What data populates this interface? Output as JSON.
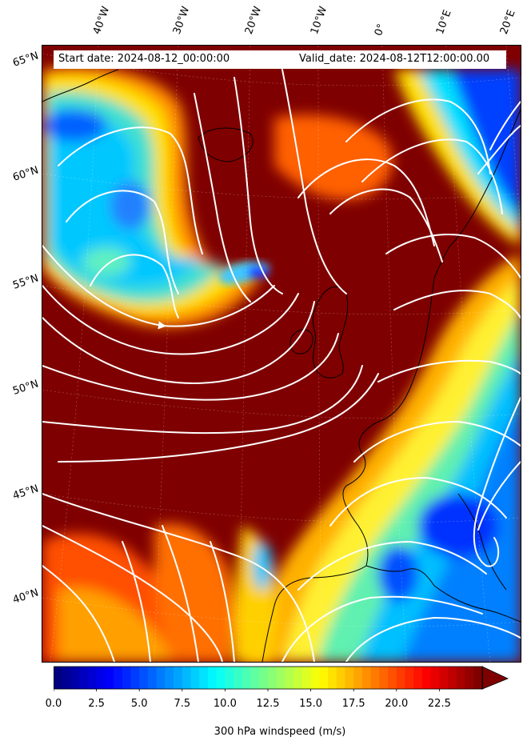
{
  "header": {
    "start_date": "Start date: 2024-08-12_00:00:00",
    "valid_date": "Valid_date: 2024-08-12T12:00:00.00"
  },
  "axes": {
    "longitude_labels": [
      "40°W",
      "30°W",
      "20°W",
      "10°W",
      "0°",
      "10°E",
      "20°E"
    ],
    "latitude_labels": [
      "65°N",
      "60°N",
      "55°N",
      "50°N",
      "45°N",
      "40°N"
    ]
  },
  "colorbar": {
    "label": "300 hPa windspeed (m/s)",
    "ticks": [
      "0.0",
      "2.5",
      "5.0",
      "7.5",
      "10.0",
      "12.5",
      "15.0",
      "17.5",
      "20.0",
      "22.5"
    ],
    "min": 0,
    "max": 25,
    "extend": "max",
    "colormap": "jet",
    "over_color": "#7f0000"
  },
  "map": {
    "variable": "300 hPa windspeed",
    "units": "m/s",
    "overlay": "streamlines",
    "streamline_color": "#ffffff",
    "coastline_color": "#000000",
    "background_color": "#7f0000"
  }
}
